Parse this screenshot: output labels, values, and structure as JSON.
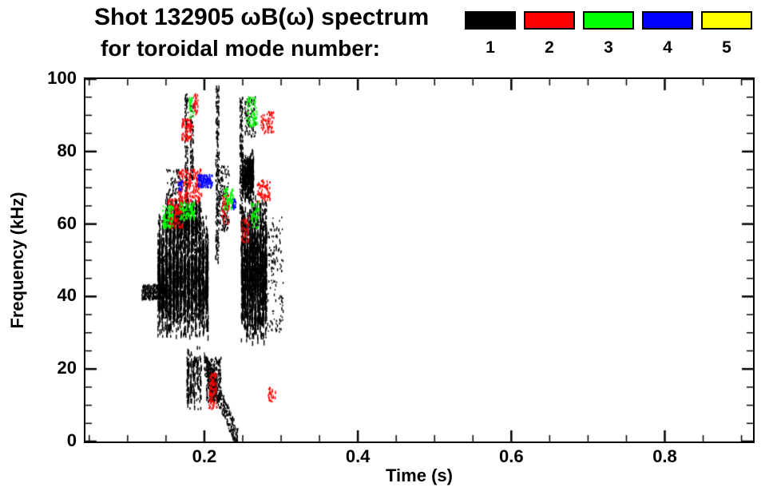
{
  "header": {
    "title_line1": "Shot 132905 ωB(ω) spectrum",
    "title_line2": "for toroidal mode number:"
  },
  "legend": {
    "items": [
      {
        "label": "1",
        "color": "#000000"
      },
      {
        "label": "2",
        "color": "#ff0000"
      },
      {
        "label": "3",
        "color": "#00ff00"
      },
      {
        "label": "4",
        "color": "#0000ff"
      },
      {
        "label": "5",
        "color": "#ffff00"
      }
    ]
  },
  "chart_data": {
    "type": "scatter",
    "title": "Shot 132905 ωB(ω) spectrum for toroidal mode number: 1 2 3 4 5",
    "xlabel": "Time (s)",
    "ylabel": "Frequency (kHz)",
    "xlim": [
      0.045,
      0.915
    ],
    "ylim": [
      0,
      100
    ],
    "grid": false,
    "legend_position": "top-right",
    "xticks": {
      "major": [
        0.2,
        0.4,
        0.6,
        0.8
      ],
      "labels": [
        "0.2",
        "0.4",
        "0.6",
        "0.8"
      ],
      "minor_step": 0.05
    },
    "yticks": {
      "major": [
        0,
        20,
        40,
        60,
        80,
        100
      ],
      "labels": [
        "0",
        "20",
        "40",
        "60",
        "80",
        "100"
      ],
      "minor_step": 5
    },
    "series": [
      {
        "name": "1",
        "color": "#000000",
        "clusters": [
          {
            "mode": "line",
            "t": [
              0.118,
              0.152
            ],
            "f": [
              41,
              41.5
            ],
            "w": 4,
            "n": 300
          },
          {
            "mode": "streak",
            "t": [
              0.138,
              0.205
            ],
            "f": [
              28,
              63
            ],
            "k": 14,
            "n": 2600
          },
          {
            "mode": "streak",
            "t": [
              0.148,
              0.196
            ],
            "f": [
              55,
              67
            ],
            "k": 10,
            "n": 550
          },
          {
            "mode": "scatter",
            "t": [
              0.15,
              0.17
            ],
            "f": [
              66,
              75
            ],
            "n": 80
          },
          {
            "mode": "scatter",
            "t": [
              0.174,
              0.178
            ],
            "f": [
              58,
              96
            ],
            "n": 170
          },
          {
            "mode": "scatter",
            "t": [
              0.181,
              0.185
            ],
            "f": [
              72,
              93
            ],
            "n": 100
          },
          {
            "mode": "streak",
            "t": [
              0.176,
              0.196
            ],
            "f": [
              8,
              27
            ],
            "k": 5,
            "n": 180
          },
          {
            "mode": "scatter",
            "t": [
              0.214,
              0.2185
            ],
            "f": [
              49,
              98
            ],
            "n": 240
          },
          {
            "mode": "line",
            "t": [
              0.199,
              0.243
            ],
            "f": [
              22,
              0.5
            ],
            "w": 6,
            "n": 340
          },
          {
            "mode": "scatter",
            "t": [
              0.202,
              0.221
            ],
            "f": [
              11,
              23
            ],
            "n": 280
          },
          {
            "mode": "scatter",
            "t": [
              0.218,
              0.232
            ],
            "f": [
              58,
              76
            ],
            "n": 140
          },
          {
            "mode": "scatter",
            "t": [
              0.2455,
              0.2495
            ],
            "f": [
              63,
              95
            ],
            "n": 170
          },
          {
            "mode": "streak",
            "t": [
              0.247,
              0.281
            ],
            "f": [
              26,
              68
            ],
            "k": 10,
            "n": 1900
          },
          {
            "mode": "streak",
            "t": [
              0.2485,
              0.264
            ],
            "f": [
              66,
              80
            ],
            "k": 5,
            "n": 380
          },
          {
            "mode": "scatter",
            "t": [
              0.252,
              0.266
            ],
            "f": [
              84,
              95
            ],
            "n": 90
          },
          {
            "mode": "scatter",
            "t": [
              0.281,
              0.302
            ],
            "f": [
              30,
              62
            ],
            "n": 130
          }
        ]
      },
      {
        "name": "2",
        "color": "#ff0000",
        "clusters": [
          {
            "mode": "scatter",
            "t": [
              0.152,
              0.171
            ],
            "f": [
              59,
              67
            ],
            "n": 160
          },
          {
            "mode": "scatter",
            "t": [
              0.165,
              0.196
            ],
            "f": [
              66,
              75
            ],
            "n": 210
          },
          {
            "mode": "scatter",
            "t": [
              0.17,
              0.184
            ],
            "f": [
              83,
              89
            ],
            "n": 80
          },
          {
            "mode": "scatter",
            "t": [
              0.185,
              0.191
            ],
            "f": [
              90,
              96
            ],
            "n": 35
          },
          {
            "mode": "scatter",
            "t": [
              0.205,
              0.216
            ],
            "f": [
              9,
              19
            ],
            "n": 100
          },
          {
            "mode": "scatter",
            "t": [
              0.222,
              0.232
            ],
            "f": [
              60,
              68
            ],
            "n": 60
          },
          {
            "mode": "scatter",
            "t": [
              0.248,
              0.258
            ],
            "f": [
              55,
              62
            ],
            "n": 50
          },
          {
            "mode": "scatter",
            "t": [
              0.266,
              0.285
            ],
            "f": [
              66,
              72
            ],
            "n": 80
          },
          {
            "mode": "scatter",
            "t": [
              0.273,
              0.29
            ],
            "f": [
              85,
              91
            ],
            "n": 70
          },
          {
            "mode": "scatter",
            "t": [
              0.282,
              0.292
            ],
            "f": [
              11,
              15
            ],
            "n": 28
          }
        ]
      },
      {
        "name": "3",
        "color": "#00ff00",
        "clusters": [
          {
            "mode": "scatter",
            "t": [
              0.145,
              0.159
            ],
            "f": [
              59,
              65
            ],
            "n": 90
          },
          {
            "mode": "scatter",
            "t": [
              0.167,
              0.187
            ],
            "f": [
              61,
              66
            ],
            "n": 100
          },
          {
            "mode": "scatter",
            "t": [
              0.179,
              0.185
            ],
            "f": [
              89,
              95
            ],
            "n": 30
          },
          {
            "mode": "scatter",
            "t": [
              0.225,
              0.237
            ],
            "f": [
              64,
              70
            ],
            "n": 70
          },
          {
            "mode": "scatter",
            "t": [
              0.254,
              0.268
            ],
            "f": [
              87,
              95
            ],
            "n": 80
          },
          {
            "mode": "scatter",
            "t": [
              0.26,
              0.271
            ],
            "f": [
              59,
              66
            ],
            "n": 45
          }
        ]
      },
      {
        "name": "4",
        "color": "#0000ff",
        "clusters": [
          {
            "mode": "scatter",
            "t": [
              0.191,
              0.21
            ],
            "f": [
              70,
              73.5
            ],
            "n": 130
          },
          {
            "mode": "scatter",
            "t": [
              0.165,
              0.171
            ],
            "f": [
              69,
              72
            ],
            "n": 25
          },
          {
            "mode": "scatter",
            "t": [
              0.236,
              0.241
            ],
            "f": [
              64,
              67
            ],
            "n": 22
          }
        ]
      },
      {
        "name": "5",
        "color": "#ffff00",
        "clusters": []
      }
    ]
  }
}
